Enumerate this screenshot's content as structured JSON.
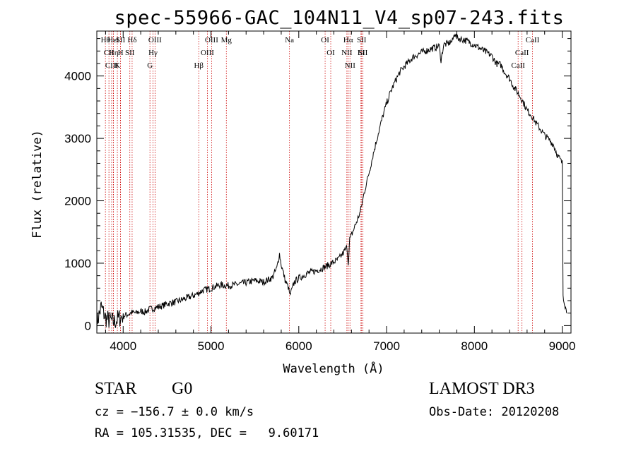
{
  "header": {
    "title": "spec-55966-GAC_104N11_V4_sp07-243.fits"
  },
  "chart_data": {
    "type": "line",
    "title": "spec-55966-GAC_104N11_V4_sp07-243.fits",
    "xlabel": "Wavelength (Å)",
    "ylabel": "Flux (relative)",
    "xlim": [
      3700,
      9100
    ],
    "ylim": [
      -120,
      4720
    ],
    "xticks": [
      4000,
      5000,
      6000,
      7000,
      8000,
      9000
    ],
    "yticks": [
      0,
      1000,
      2000,
      3000,
      4000
    ],
    "series": [
      {
        "name": "flux",
        "x": [
          3700,
          3750,
          3800,
          3850,
          3900,
          3950,
          4000,
          4050,
          4100,
          4150,
          4200,
          4250,
          4300,
          4350,
          4400,
          4450,
          4500,
          4600,
          4700,
          4800,
          4860,
          4900,
          5000,
          5100,
          5200,
          5300,
          5400,
          5500,
          5600,
          5700,
          5750,
          5780,
          5800,
          5850,
          5880,
          5900,
          5950,
          6000,
          6100,
          6200,
          6300,
          6400,
          6450,
          6500,
          6550,
          6563,
          6580,
          6620,
          6700,
          6750,
          6800,
          6850,
          6900,
          6950,
          7000,
          7050,
          7100,
          7150,
          7200,
          7300,
          7400,
          7500,
          7600,
          7620,
          7650,
          7700,
          7750,
          7780,
          7800,
          7850,
          7900,
          8000,
          8100,
          8200,
          8250,
          8300,
          8350,
          8400,
          8450,
          8500,
          8550,
          8600,
          8650,
          8700,
          8750,
          8800,
          8850,
          8900,
          8950,
          9000,
          9010,
          9050
        ],
        "y": [
          40,
          300,
          120,
          80,
          60,
          120,
          150,
          180,
          210,
          200,
          230,
          220,
          260,
          280,
          300,
          320,
          350,
          380,
          430,
          480,
          520,
          560,
          600,
          650,
          640,
          660,
          690,
          720,
          700,
          770,
          920,
          1150,
          980,
          700,
          620,
          480,
          700,
          760,
          840,
          880,
          940,
          1020,
          1060,
          1150,
          1260,
          1000,
          1380,
          1520,
          1820,
          2160,
          2450,
          2760,
          3050,
          3320,
          3560,
          3760,
          3920,
          4060,
          4150,
          4300,
          4380,
          4430,
          4480,
          4250,
          4500,
          4520,
          4560,
          4700,
          4610,
          4590,
          4570,
          4500,
          4410,
          4320,
          4200,
          4180,
          4050,
          3960,
          3820,
          3720,
          3600,
          3450,
          3370,
          3250,
          3150,
          3050,
          2980,
          2900,
          2720,
          2600,
          500,
          200
        ]
      }
    ],
    "line_labels": [
      {
        "name": "Hθ",
        "wave": 3798
      },
      {
        "name": "CII",
        "wave": 3838
      },
      {
        "name": "CIII",
        "wave": 3869
      },
      {
        "name": "HeI",
        "wave": 3889
      },
      {
        "name": "Hη",
        "wave": 3890
      },
      {
        "name": "K",
        "wave": 3934
      },
      {
        "name": "SII",
        "wave": 3970
      },
      {
        "name": "H",
        "wave": 3970
      },
      {
        "name": "Hδ",
        "wave": 4102
      },
      {
        "name": "SII",
        "wave": 4076
      },
      {
        "name": "OIII",
        "wave": 4363
      },
      {
        "name": "Hγ",
        "wave": 4340
      },
      {
        "name": "G",
        "wave": 4305
      },
      {
        "name": "OIII",
        "wave": 5007
      },
      {
        "name": "OIII",
        "wave": 4959
      },
      {
        "name": "Hβ",
        "wave": 4861
      },
      {
        "name": "Mg",
        "wave": 5175
      },
      {
        "name": "Na",
        "wave": 5894
      },
      {
        "name": "OI",
        "wave": 6300
      },
      {
        "name": "OI",
        "wave": 6364
      },
      {
        "name": "Hα",
        "wave": 6563
      },
      {
        "name": "NII",
        "wave": 6548
      },
      {
        "name": "NII",
        "wave": 6583
      },
      {
        "name": "SII",
        "wave": 6716
      },
      {
        "name": "Li",
        "wave": 6708
      },
      {
        "name": "SII",
        "wave": 6731
      },
      {
        "name": "CaII",
        "wave": 8662
      },
      {
        "name": "CaII",
        "wave": 8542
      },
      {
        "name": "CaII",
        "wave": 8498
      }
    ]
  },
  "footer": {
    "class": "STAR",
    "subclass": "G0",
    "survey": "LAMOST DR3",
    "cz": "cz = −156.7 ± 0.0 km/s",
    "obs_date": "Obs-Date: 20120208",
    "radec": "RA = 105.31535, DEC =   9.60171"
  },
  "colors": {
    "line": "#000000",
    "marker": "#cc0000",
    "background": "#ffffff"
  }
}
